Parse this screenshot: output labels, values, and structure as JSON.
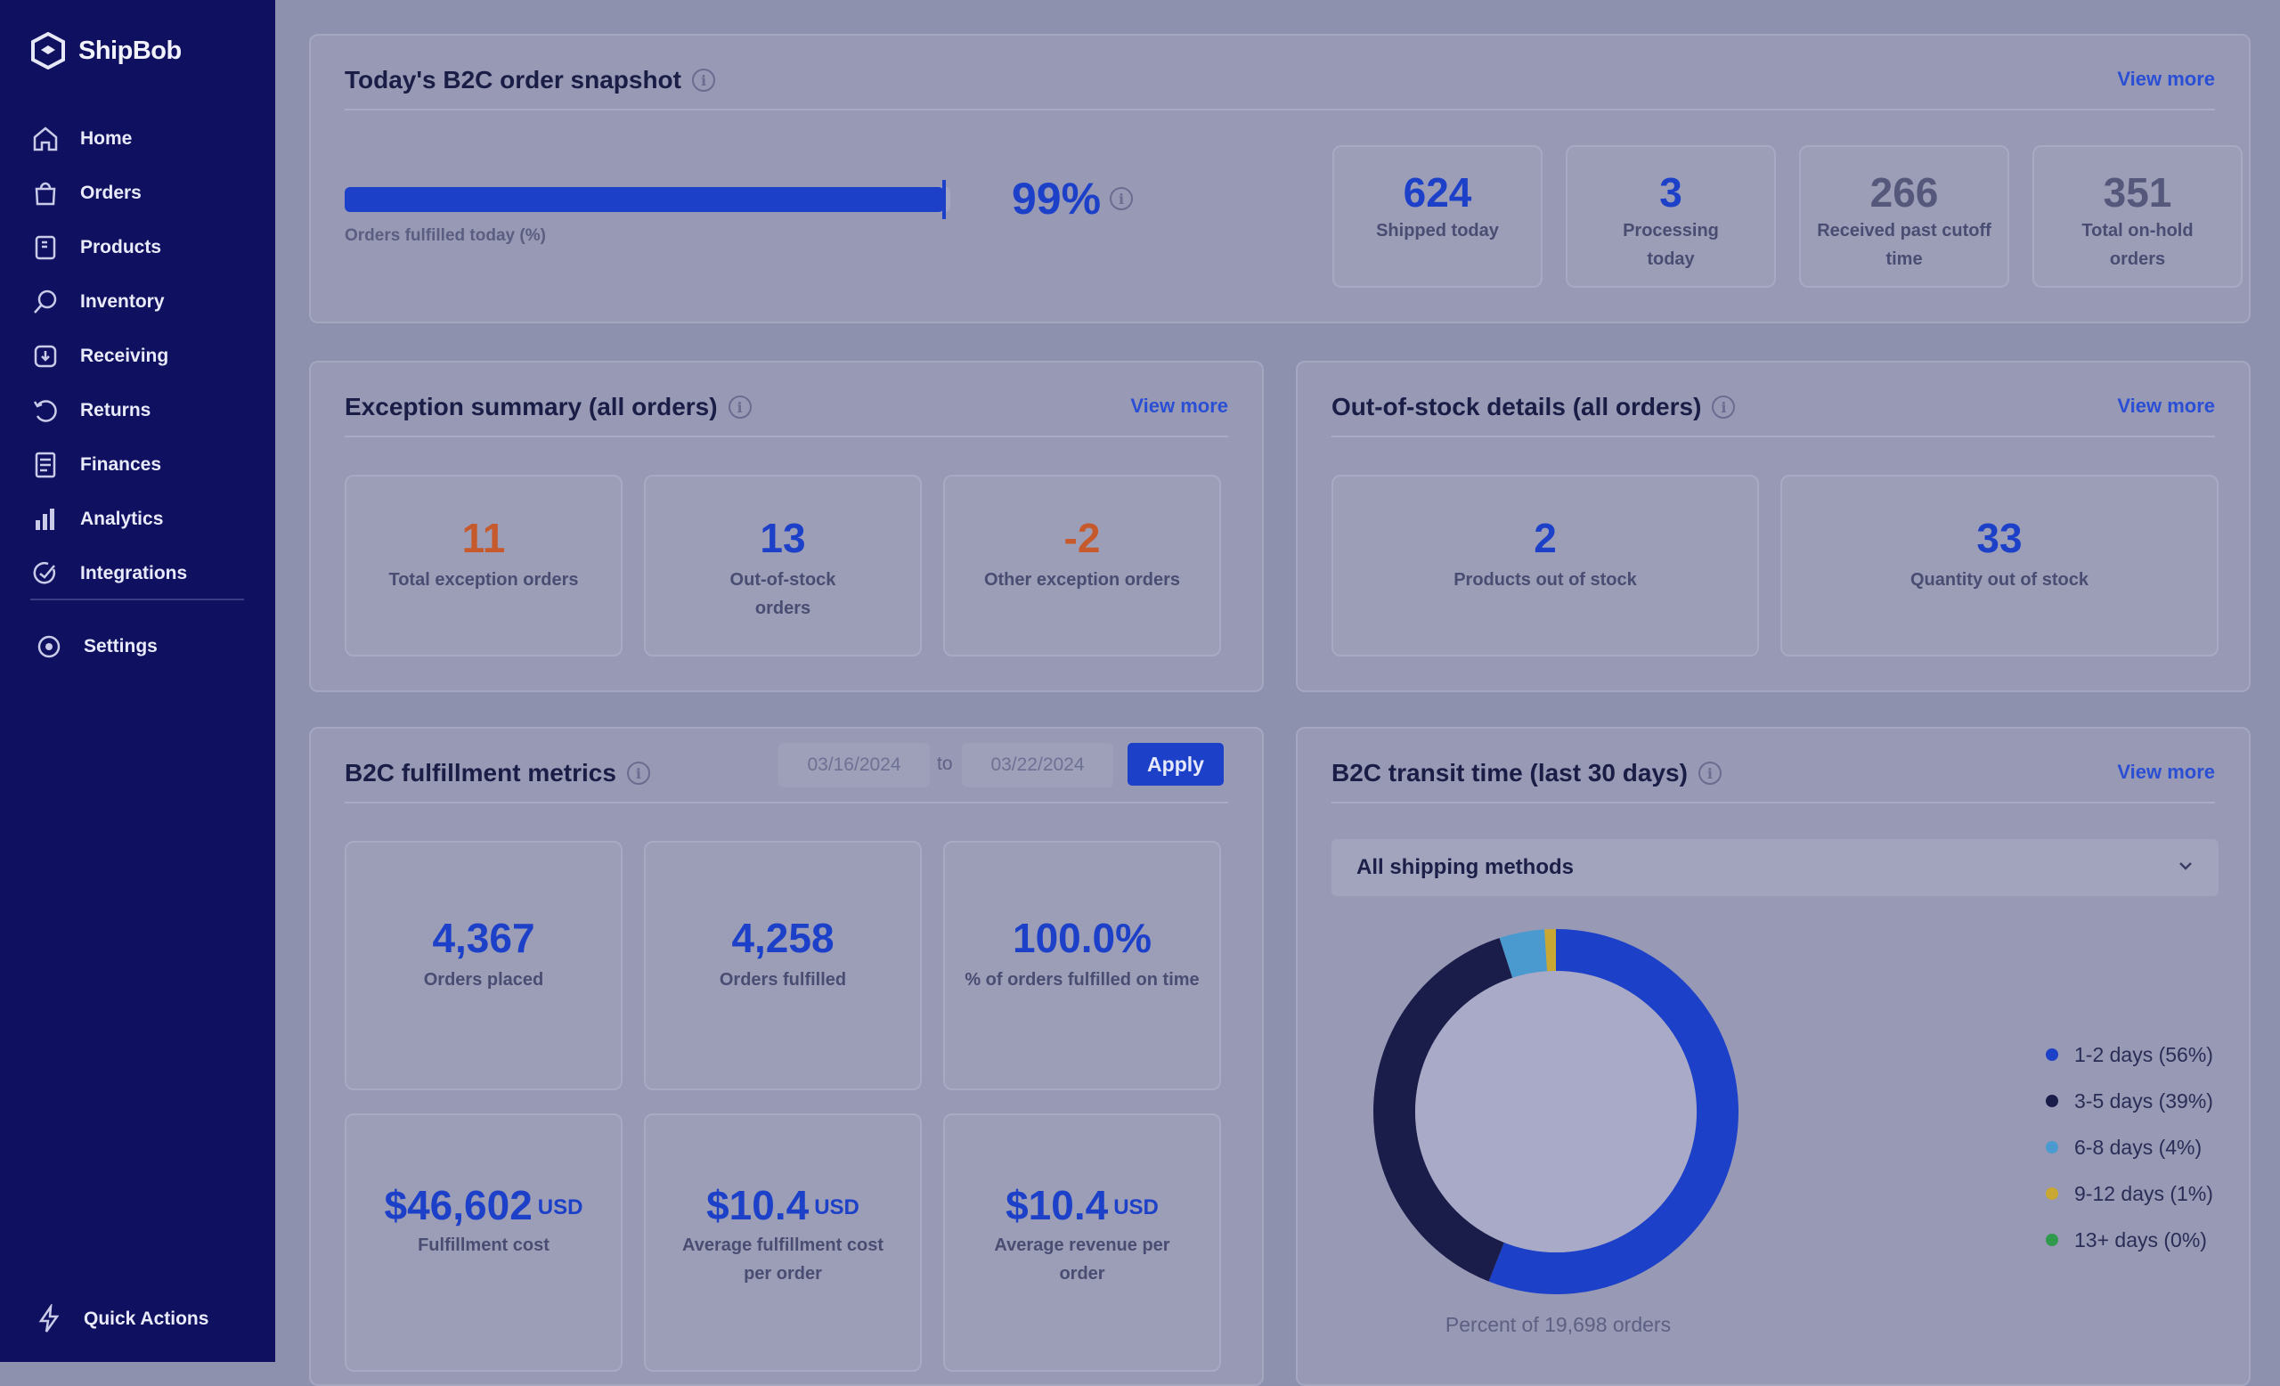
{
  "app": {
    "name": "ShipBob"
  },
  "sidebar": {
    "items": [
      {
        "label": "Home",
        "icon": "home-icon"
      },
      {
        "label": "Orders",
        "icon": "bag-icon"
      },
      {
        "label": "Products",
        "icon": "product-icon"
      },
      {
        "label": "Inventory",
        "icon": "inventory-icon"
      },
      {
        "label": "Receiving",
        "icon": "receiving-icon"
      },
      {
        "label": "Returns",
        "icon": "returns-icon"
      },
      {
        "label": "Finances",
        "icon": "finances-icon"
      },
      {
        "label": "Analytics",
        "icon": "analytics-icon"
      },
      {
        "label": "Integrations",
        "icon": "integrations-icon"
      }
    ],
    "settings": "Settings",
    "quick_actions": "Quick Actions"
  },
  "snapshot": {
    "title": "Today's B2C order snapshot",
    "view_more": "View more",
    "progress_percent": 99,
    "progress_value": "99%",
    "progress_label": "Orders fulfilled today (%)",
    "stats": [
      {
        "value": "624",
        "label": "Shipped today"
      },
      {
        "value": "3",
        "label": "Processing today"
      },
      {
        "value": "266",
        "label": "Received past cutoff time"
      },
      {
        "value": "351",
        "label": "Total on-hold orders"
      }
    ]
  },
  "exceptions": {
    "title": "Exception summary (all orders)",
    "view_more": "View more",
    "stats": [
      {
        "value": "11",
        "label": "Total exception orders"
      },
      {
        "value": "13",
        "label": "Out-of-stock orders"
      },
      {
        "value": "-2",
        "label": "Other exception orders"
      }
    ]
  },
  "out_of_stock": {
    "title": "Out-of-stock details (all orders)",
    "view_more": "View more",
    "stats": [
      {
        "value": "2",
        "label": "Products out of stock"
      },
      {
        "value": "33",
        "label": "Quantity out of stock"
      }
    ]
  },
  "fulfillment": {
    "title": "B2C fulfillment metrics",
    "date_from": "03/16/2024",
    "date_sep": "to",
    "date_to": "03/22/2024",
    "apply": "Apply",
    "stats": [
      {
        "value": "4,367",
        "label": "Orders placed"
      },
      {
        "value": "4,258",
        "label": "Orders fulfilled"
      },
      {
        "value": "100.0%",
        "label": "% of orders fulfilled on time"
      },
      {
        "value": "$46,602",
        "unit": "USD",
        "label": "Fulfillment cost"
      },
      {
        "value": "$10.4",
        "unit": "USD",
        "label": "Average fulfillment cost per order"
      },
      {
        "value": "$10.4",
        "unit": "USD",
        "label": "Average revenue per order"
      }
    ]
  },
  "transit": {
    "title": "B2C transit time (last 30 days)",
    "view_more": "View more",
    "select_value": "All shipping methods",
    "footer": "Percent of 19,698 orders"
  },
  "chart_data": {
    "type": "pie",
    "title": "B2C transit time (last 30 days)",
    "categories": [
      "1-2 days",
      "3-5 days",
      "6-8 days",
      "9-12 days",
      "13+ days"
    ],
    "values": [
      56,
      39,
      4,
      1,
      0
    ],
    "legend": [
      "1-2 days (56%)",
      "3-5 days (39%)",
      "6-8 days (4%)",
      "9-12 days (1%)",
      "13+ days (0%)"
    ],
    "colors": [
      "#1d40c9",
      "#1a1c4a",
      "#4a9ad0",
      "#c8a832",
      "#2f9a4c"
    ],
    "legend_position": "right"
  }
}
